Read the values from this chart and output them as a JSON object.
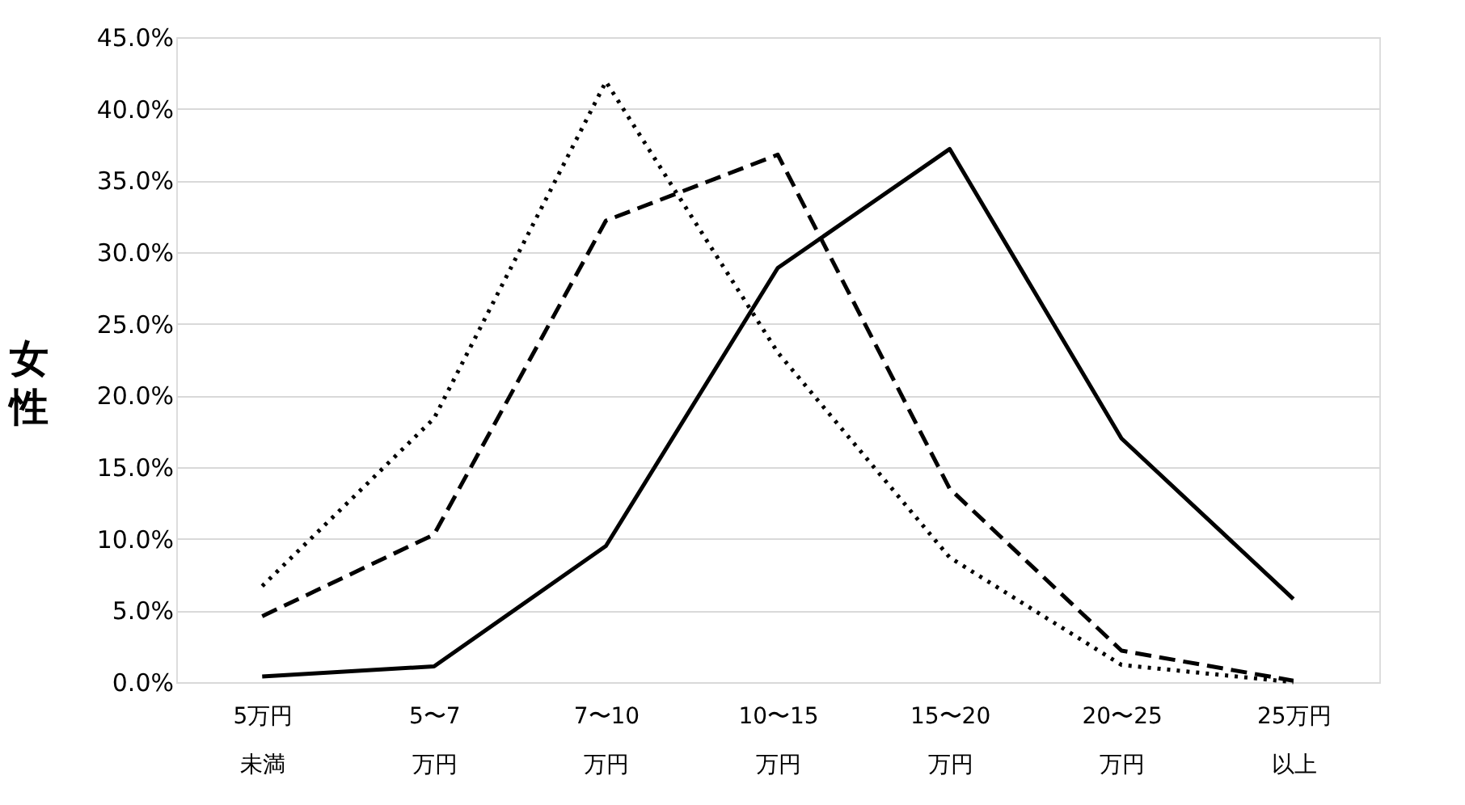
{
  "chart_data": {
    "type": "line",
    "ylabel": "女性",
    "categories": [
      "5万円未満",
      "5〜7万円",
      "7〜10万円",
      "10〜15万円",
      "15〜20万円",
      "20〜25万円",
      "25万円以上"
    ],
    "series": [
      {
        "color": "#000000",
        "line_style": "solid",
        "values": [
          0.4,
          1.1,
          9.5,
          28.9,
          37.2,
          17.0,
          5.8
        ]
      },
      {
        "color": "#000000",
        "line_style": "dashed",
        "values": [
          4.6,
          10.3,
          32.2,
          36.8,
          13.5,
          2.2,
          0.1
        ]
      },
      {
        "color": "#000000",
        "line_style": "dotted",
        "values": [
          6.7,
          18.4,
          41.9,
          23.0,
          8.7,
          1.2,
          0.0
        ]
      }
    ],
    "ylim": [
      0,
      45
    ],
    "yticks": [
      {
        "value": 0,
        "label": "0.0%"
      },
      {
        "value": 5,
        "label": "5.0%"
      },
      {
        "value": 10,
        "label": "10.0%"
      },
      {
        "value": 15,
        "label": "15.0%"
      },
      {
        "value": 20,
        "label": "20.0%"
      },
      {
        "value": 25,
        "label": "25.0%"
      },
      {
        "value": 30,
        "label": "30.0%"
      },
      {
        "value": 35,
        "label": "35.0%"
      },
      {
        "value": 40,
        "label": "40.0%"
      },
      {
        "value": 45,
        "label": "45.0%"
      }
    ],
    "grid": "y",
    "legend": false,
    "marker": "none"
  }
}
